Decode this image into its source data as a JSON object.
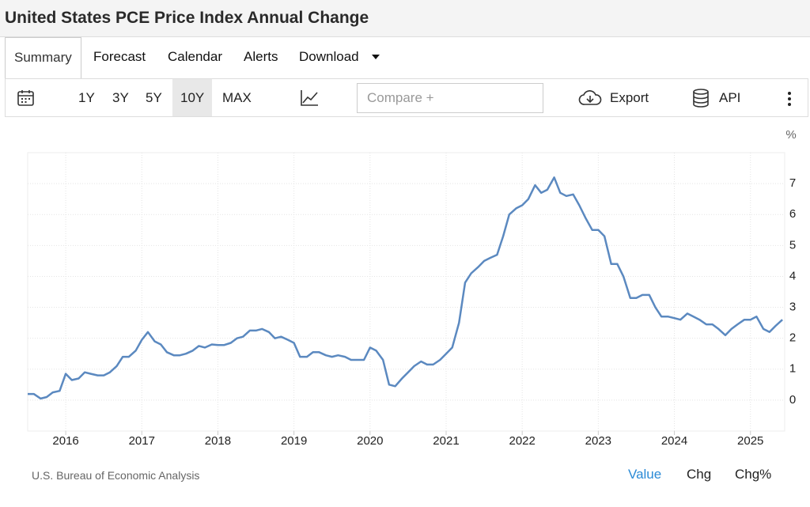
{
  "header": {
    "title": "United States PCE Price Index Annual Change"
  },
  "tabs": [
    "Summary",
    "Forecast",
    "Calendar",
    "Alerts",
    "Download"
  ],
  "toolbar": {
    "ranges": [
      "1Y",
      "3Y",
      "5Y",
      "10Y",
      "MAX"
    ],
    "compare_placeholder": "Compare +",
    "export": "Export",
    "api": "API"
  },
  "chart_data": {
    "type": "line",
    "unit_label": "%",
    "color": "#5b89c0",
    "x": [
      2015.5,
      2015.58,
      2015.67,
      2015.75,
      2015.83,
      2015.92,
      2016,
      2016.08,
      2016.17,
      2016.25,
      2016.33,
      2016.42,
      2016.5,
      2016.58,
      2016.67,
      2016.75,
      2016.83,
      2016.92,
      2017,
      2017.08,
      2017.17,
      2017.25,
      2017.33,
      2017.42,
      2017.5,
      2017.58,
      2017.67,
      2017.75,
      2017.83,
      2017.92,
      2018,
      2018.08,
      2018.17,
      2018.25,
      2018.33,
      2018.42,
      2018.5,
      2018.58,
      2018.67,
      2018.75,
      2018.83,
      2018.92,
      2019,
      2019.08,
      2019.17,
      2019.25,
      2019.33,
      2019.42,
      2019.5,
      2019.58,
      2019.67,
      2019.75,
      2019.83,
      2019.92,
      2020,
      2020.08,
      2020.17,
      2020.25,
      2020.33,
      2020.42,
      2020.5,
      2020.58,
      2020.67,
      2020.75,
      2020.83,
      2020.92,
      2021,
      2021.08,
      2021.17,
      2021.25,
      2021.33,
      2021.42,
      2021.5,
      2021.58,
      2021.67,
      2021.75,
      2021.83,
      2021.92,
      2022,
      2022.08,
      2022.17,
      2022.25,
      2022.33,
      2022.42,
      2022.5,
      2022.58,
      2022.67,
      2022.75,
      2022.83,
      2022.92,
      2023,
      2023.08,
      2023.17,
      2023.25,
      2023.33,
      2023.42,
      2023.5,
      2023.58,
      2023.67,
      2023.75,
      2023.83,
      2023.92,
      2024,
      2024.08,
      2024.17,
      2024.25,
      2024.33,
      2024.42,
      2024.5,
      2024.58,
      2024.67,
      2024.75,
      2024.83,
      2024.92,
      2025,
      2025.08,
      2025.17,
      2025.25,
      2025.33,
      2025.42
    ],
    "values": [
      0.2,
      0.2,
      0.05,
      0.1,
      0.25,
      0.3,
      0.85,
      0.65,
      0.7,
      0.9,
      0.85,
      0.8,
      0.8,
      0.9,
      1.1,
      1.4,
      1.4,
      1.6,
      1.95,
      2.2,
      1.9,
      1.8,
      1.55,
      1.45,
      1.45,
      1.5,
      1.6,
      1.75,
      1.7,
      1.8,
      1.78,
      1.78,
      1.85,
      2.0,
      2.05,
      2.25,
      2.25,
      2.3,
      2.2,
      2.0,
      2.05,
      1.95,
      1.85,
      1.4,
      1.4,
      1.55,
      1.55,
      1.45,
      1.4,
      1.45,
      1.4,
      1.3,
      1.3,
      1.3,
      1.7,
      1.6,
      1.3,
      0.5,
      0.45,
      0.7,
      0.9,
      1.1,
      1.25,
      1.15,
      1.15,
      1.3,
      1.5,
      1.7,
      2.5,
      3.8,
      4.1,
      4.3,
      4.5,
      4.6,
      4.7,
      5.3,
      6.0,
      6.2,
      6.3,
      6.5,
      6.95,
      6.7,
      6.8,
      7.2,
      6.7,
      6.6,
      6.65,
      6.3,
      5.9,
      5.5,
      5.5,
      5.3,
      4.4,
      4.4,
      4.0,
      3.3,
      3.3,
      3.4,
      3.4,
      3.0,
      2.7,
      2.7,
      2.65,
      2.6,
      2.8,
      2.7,
      2.6,
      2.45,
      2.45,
      2.3,
      2.1,
      2.3,
      2.45,
      2.6,
      2.6,
      2.7,
      2.3,
      2.2,
      2.4,
      2.6
    ],
    "xlim": [
      2015.5,
      2025.45
    ],
    "xticks": [
      2016,
      2017,
      2018,
      2019,
      2020,
      2021,
      2022,
      2023,
      2024,
      2025
    ],
    "ylim": [
      -1,
      8
    ],
    "yticks": [
      0,
      1,
      2,
      3,
      4,
      5,
      6,
      7
    ],
    "grid": true
  },
  "footer": {
    "source": "U.S. Bureau of Economic Analysis",
    "views": [
      "Value",
      "Chg",
      "Chg%"
    ]
  }
}
